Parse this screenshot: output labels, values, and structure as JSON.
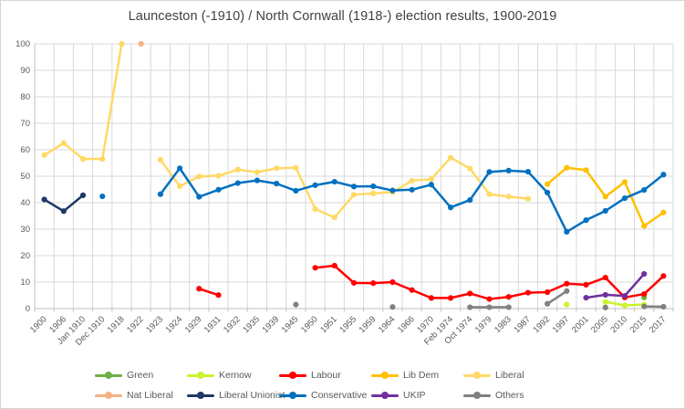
{
  "chart_data": {
    "type": "line",
    "title": "Launceston (-1910) / North Cornwall (1918-) election results, 1900-2019",
    "xlabel": "",
    "ylabel": "",
    "ylim": [
      0,
      100
    ],
    "yticks": [
      0,
      10,
      20,
      30,
      40,
      50,
      60,
      70,
      80,
      90,
      100
    ],
    "grid": true,
    "legend_position": "bottom",
    "categories": [
      "1900",
      "1906",
      "Jan 1910",
      "Dec 1910",
      "1918",
      "1922",
      "1923",
      "1924",
      "1929",
      "1931",
      "1932",
      "1935",
      "1939",
      "1945",
      "1950",
      "1951",
      "1955",
      "1959",
      "1964",
      "1966",
      "1970",
      "Feb 1974",
      "Oct 1974",
      "1979",
      "1983",
      "1987",
      "1992",
      "1997",
      "2001",
      "2005",
      "2010",
      "2015",
      "2017"
    ],
    "series": [
      {
        "name": "Green",
        "color": "#70AD47",
        "values": [
          null,
          null,
          null,
          null,
          null,
          null,
          null,
          null,
          null,
          null,
          null,
          null,
          null,
          null,
          null,
          null,
          null,
          null,
          null,
          null,
          null,
          null,
          null,
          null,
          null,
          null,
          null,
          null,
          null,
          null,
          null,
          4.2,
          null
        ]
      },
      {
        "name": "Kernow",
        "color": "#CCF32B",
        "values": [
          null,
          null,
          null,
          null,
          null,
          null,
          null,
          null,
          null,
          null,
          null,
          null,
          null,
          null,
          null,
          null,
          null,
          null,
          null,
          null,
          null,
          null,
          null,
          null,
          null,
          null,
          null,
          1.5,
          null,
          2.5,
          1.2,
          1.5,
          null
        ]
      },
      {
        "name": "Labour",
        "color": "#FF0000",
        "values": [
          null,
          null,
          null,
          null,
          null,
          null,
          null,
          null,
          7.5,
          5.1,
          null,
          null,
          null,
          null,
          15.4,
          16.2,
          9.7,
          9.6,
          10,
          7,
          4,
          4,
          5.7,
          3.6,
          4.4,
          6,
          6.2,
          9.4,
          9,
          11.7,
          4.2,
          5.5,
          12.3
        ]
      },
      {
        "name": "Lib Dem",
        "color": "#FFC000",
        "values": [
          null,
          null,
          null,
          null,
          null,
          null,
          null,
          null,
          null,
          null,
          null,
          null,
          null,
          null,
          null,
          null,
          null,
          null,
          null,
          null,
          null,
          null,
          null,
          null,
          null,
          null,
          47,
          53.2,
          52.3,
          42.3,
          47.8,
          31.2,
          36.3
        ]
      },
      {
        "name": "Liberal",
        "color": "#FFD966",
        "values": [
          58,
          62.5,
          56.5,
          56.5,
          100,
          null,
          56.2,
          46.2,
          49.9,
          50.2,
          52.5,
          51.5,
          53,
          53.2,
          37.6,
          34.4,
          43,
          43.5,
          44,
          48.3,
          48.9,
          57,
          52.9,
          43.2,
          42.3,
          41.5,
          null,
          null,
          null,
          null,
          null,
          null,
          null
        ]
      },
      {
        "name": "Nat Liberal",
        "color": "#F4B183",
        "values": [
          null,
          null,
          null,
          null,
          null,
          100,
          null,
          null,
          null,
          null,
          null,
          null,
          null,
          null,
          null,
          null,
          null,
          null,
          null,
          null,
          null,
          null,
          null,
          null,
          null,
          null,
          null,
          null,
          null,
          null,
          null,
          null,
          null
        ]
      },
      {
        "name": "Liberal Unionist",
        "color": "#1F3864",
        "values": [
          41.2,
          36.8,
          42.8,
          null,
          null,
          null,
          null,
          null,
          null,
          null,
          null,
          null,
          null,
          null,
          null,
          null,
          null,
          null,
          null,
          null,
          null,
          null,
          null,
          null,
          null,
          null,
          null,
          null,
          null,
          null,
          null,
          null,
          null
        ]
      },
      {
        "name": "Conservative",
        "color": "#0070C0",
        "values": [
          null,
          null,
          null,
          42.4,
          null,
          null,
          43.2,
          53,
          42.2,
          44.9,
          47.4,
          48.4,
          47.2,
          44.5,
          46.6,
          47.9,
          46.1,
          46.2,
          44.6,
          44.9,
          46.8,
          38.2,
          41,
          51.6,
          52.1,
          51.7,
          43.8,
          29,
          33.4,
          36.9,
          41.7,
          44.8,
          50.6
        ]
      },
      {
        "name": "UKIP",
        "color": "#7030A0",
        "values": [
          null,
          null,
          null,
          null,
          null,
          null,
          null,
          null,
          null,
          null,
          null,
          null,
          null,
          null,
          null,
          null,
          null,
          null,
          null,
          null,
          null,
          null,
          null,
          null,
          null,
          null,
          null,
          null,
          4.1,
          5.2,
          4.8,
          13.1,
          null
        ]
      },
      {
        "name": "Others",
        "color": "#808080",
        "values": [
          null,
          null,
          null,
          null,
          null,
          null,
          null,
          null,
          null,
          null,
          null,
          null,
          null,
          1.5,
          null,
          null,
          null,
          null,
          0.6,
          null,
          null,
          null,
          0.5,
          0.5,
          0.5,
          null,
          1.8,
          6.6,
          null,
          0.4,
          null,
          0.8,
          0.7
        ]
      }
    ],
    "colors": {
      "grid": "#d9d9d9",
      "axis": "#bfbfbf",
      "tick_text": "#595959",
      "title_text": "#3f3f46"
    }
  }
}
